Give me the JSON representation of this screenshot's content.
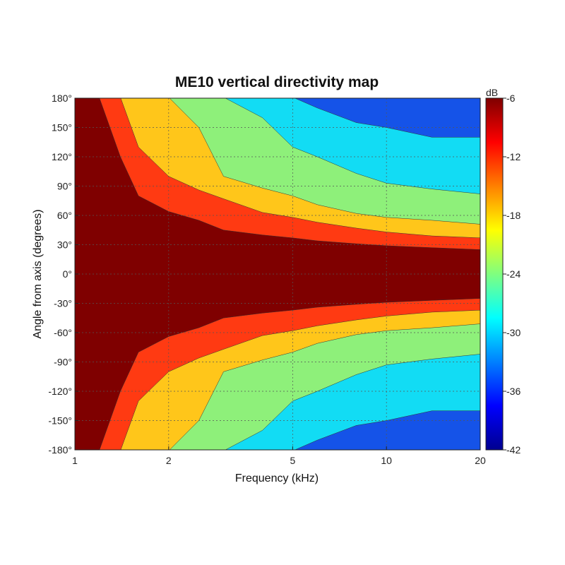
{
  "chart_data": {
    "type": "heatmap",
    "title": "ME10 vertical directivity map",
    "xlabel": "Frequency (kHz)",
    "ylabel": "Angle from axis (degrees)",
    "x_scale": "log",
    "xlim": [
      1,
      20
    ],
    "ylim": [
      -180,
      180
    ],
    "x_ticks": [
      1,
      2,
      5,
      10,
      20
    ],
    "x_tick_labels": [
      "1",
      "2",
      "5",
      "10",
      "20"
    ],
    "y_ticks": [
      180,
      150,
      120,
      90,
      60,
      30,
      0,
      -30,
      -60,
      -90,
      -120,
      -150,
      -180
    ],
    "y_tick_labels": [
      "180°",
      "150°",
      "120°",
      "90°",
      "60°",
      "30°",
      "0°",
      "-30°",
      "-60°",
      "-90°",
      "-120°",
      "-150°",
      "-180°"
    ],
    "grid": true,
    "colorbar": {
      "unit": "dB",
      "range": [
        -42,
        -6
      ],
      "ticks": [
        -6,
        -12,
        -18,
        -24,
        -30,
        -36,
        -42
      ],
      "tick_labels": [
        "-6",
        "-12",
        "-18",
        "-24",
        "-30",
        "-36",
        "-42"
      ]
    },
    "contour_levels": [
      {
        "level": "-6 to -12 dB",
        "color": "#7f0000"
      },
      {
        "level": "-12 to -18 dB",
        "color": "#ff3a12"
      },
      {
        "level": "-18 to -24 dB",
        "color": "#ffc61a"
      },
      {
        "level": "-24 to -30 dB",
        "color": "#8ef07a"
      },
      {
        "level": "-30 to -36 dB",
        "color": "#12dcf4"
      },
      {
        "level": "-36 to -42 dB",
        "color": "#1553e8"
      },
      {
        "level": "below -42 dB",
        "color": "#000a96"
      }
    ],
    "contour_boundaries_deg": {
      "frequency_khz": [
        1.0,
        1.2,
        1.4,
        1.6,
        2.0,
        2.5,
        3.0,
        4.0,
        5.0,
        6.0,
        8.0,
        10.0,
        14.0,
        20.0
      ],
      "level_-12dB": [
        180,
        180,
        120,
        80,
        64,
        55,
        45,
        40,
        37,
        34,
        31,
        29,
        27,
        25
      ],
      "level_-18dB": [
        181,
        181,
        181,
        130,
        100,
        86,
        77,
        63,
        58,
        53,
        47,
        43,
        39,
        37
      ],
      "level_-24dB": [
        181,
        181,
        181,
        181,
        181,
        150,
        100,
        88,
        80,
        71,
        62,
        58,
        55,
        51
      ],
      "level_-30dB": [
        181,
        181,
        181,
        181,
        181,
        181,
        181,
        160,
        130,
        120,
        103,
        93,
        87,
        82
      ],
      "level_-36dB": [
        181,
        181,
        181,
        181,
        181,
        181,
        181,
        181,
        181,
        170,
        155,
        150,
        140,
        140
      ]
    }
  }
}
